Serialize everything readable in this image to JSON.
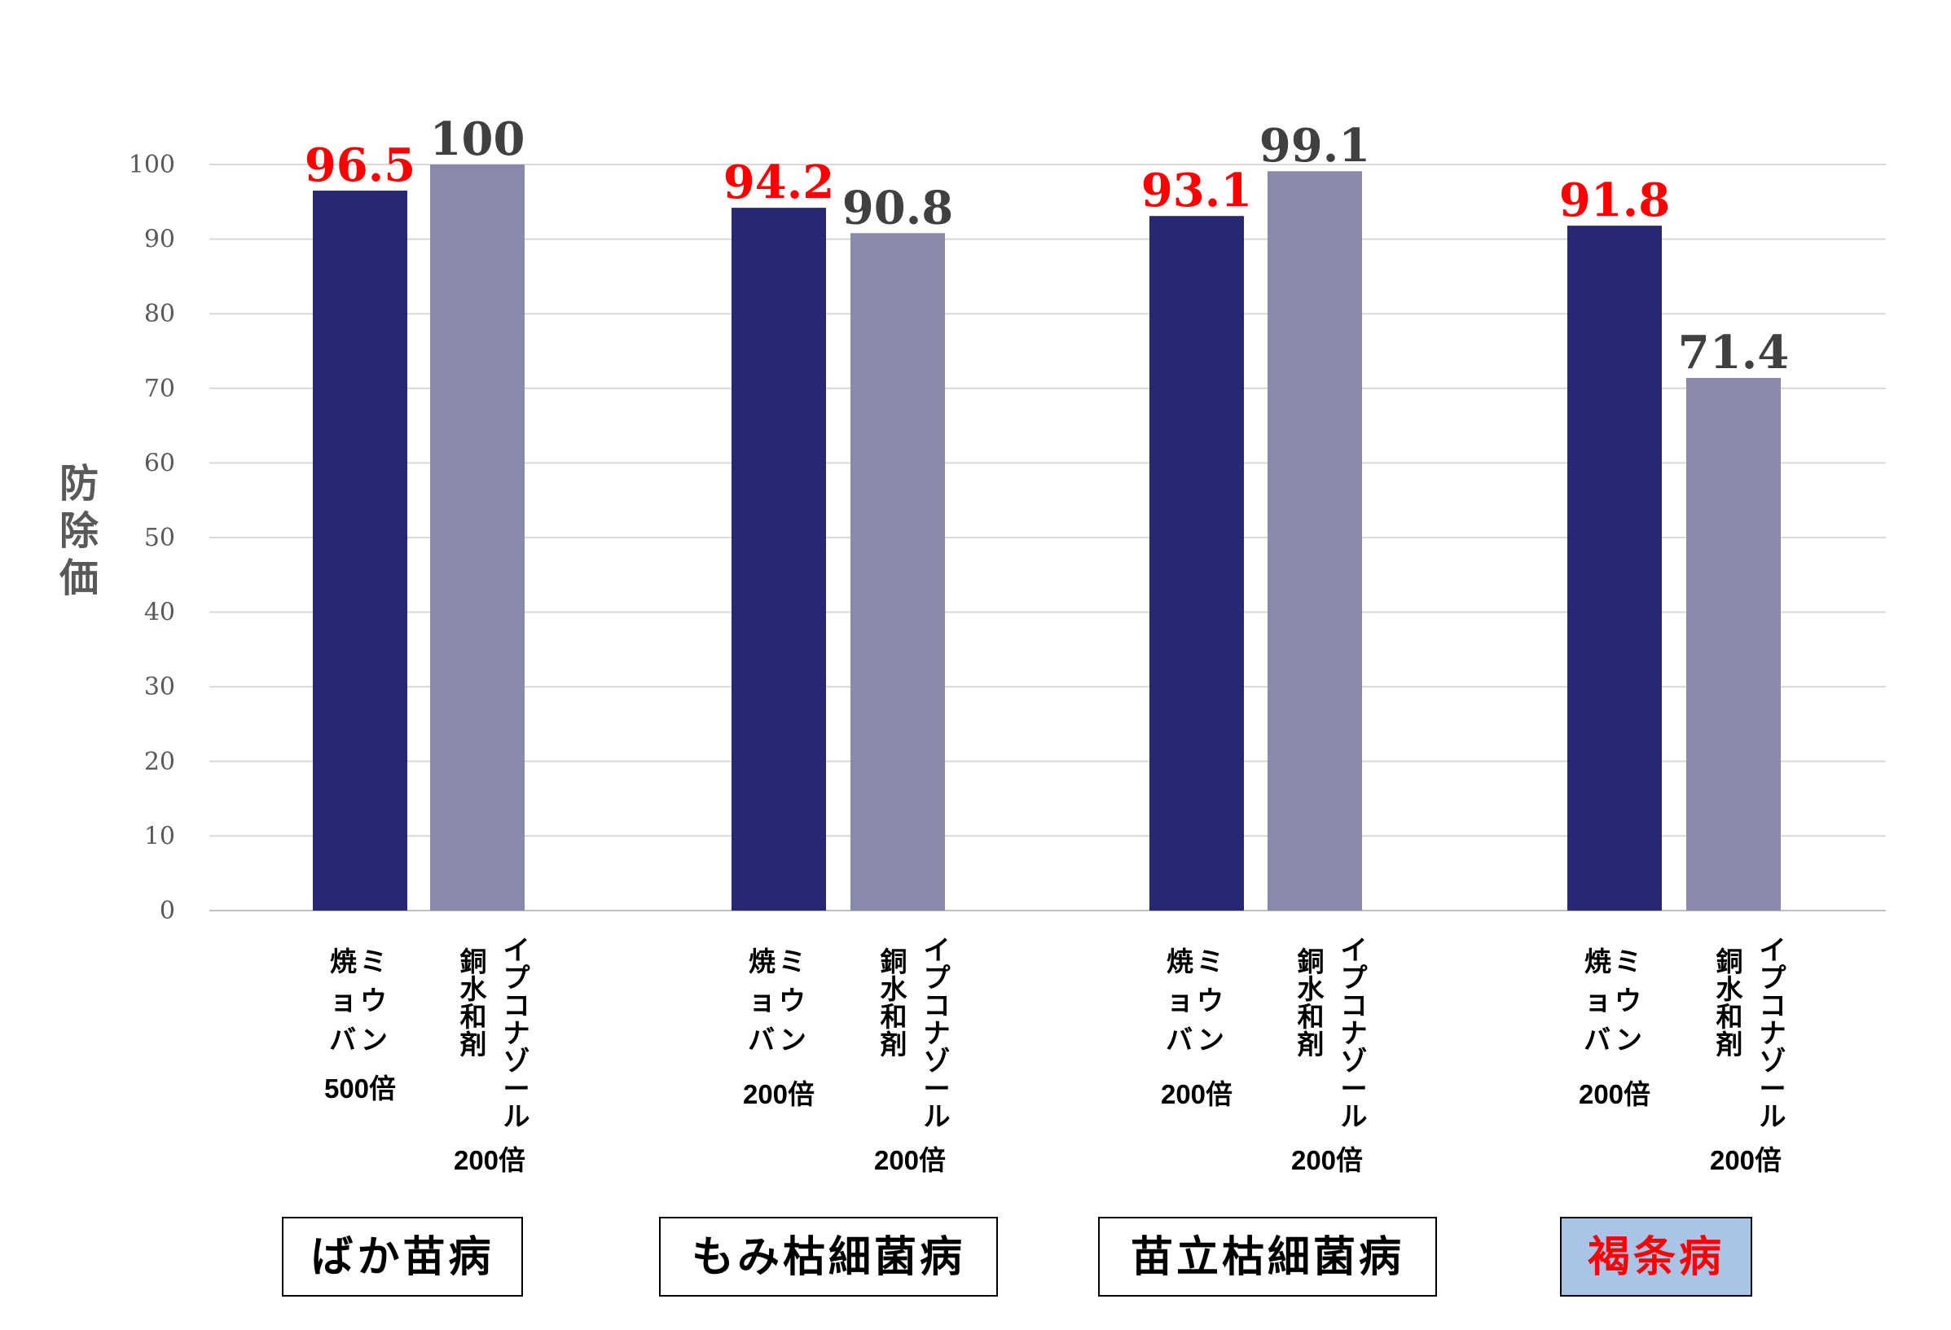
{
  "chart_data": {
    "type": "bar",
    "ylabel": "防除価",
    "ylim": [
      0,
      100
    ],
    "yticks": [
      0,
      10,
      20,
      30,
      40,
      50,
      60,
      70,
      80,
      90,
      100
    ],
    "grid": true,
    "groups": [
      {
        "disease": "ばか苗病",
        "highlight": false,
        "bars": [
          {
            "product": "焼ミョウバン",
            "dilution": "500倍",
            "value": 96.5,
            "label": "96.5"
          },
          {
            "product": "イプコナゾール銅水和剤",
            "dilution": "200倍",
            "value": 100,
            "label": "100"
          }
        ]
      },
      {
        "disease": "もみ枯細菌病",
        "highlight": false,
        "bars": [
          {
            "product": "焼ミョウバン",
            "dilution": "200倍",
            "value": 94.2,
            "label": "94.2"
          },
          {
            "product": "イプコナゾール銅水和剤",
            "dilution": "200倍",
            "value": 90.8,
            "label": "90.8"
          }
        ]
      },
      {
        "disease": "苗立枯細菌病",
        "highlight": false,
        "bars": [
          {
            "product": "焼ミョウバン",
            "dilution": "200倍",
            "value": 93.1,
            "label": "93.1"
          },
          {
            "product": "イプコナゾール銅水和剤",
            "dilution": "200倍",
            "value": 99.1,
            "label": "99.1"
          }
        ]
      },
      {
        "disease": "褐条病",
        "highlight": true,
        "bars": [
          {
            "product": "焼ミョウバン",
            "dilution": "200倍",
            "value": 91.8,
            "label": "91.8"
          },
          {
            "product": "イプコナゾール銅水和剤",
            "dilution": "200倍",
            "value": 71.4,
            "label": "71.4"
          }
        ]
      }
    ],
    "colors": {
      "alum_bar": "#272874",
      "reference_bar": "#8889ad",
      "alum_label": "#ff0000",
      "reference_label": "#404040",
      "highlight_box": "#a9c4e6",
      "highlight_text": "#ff0000",
      "normal_text": "#000000"
    }
  }
}
